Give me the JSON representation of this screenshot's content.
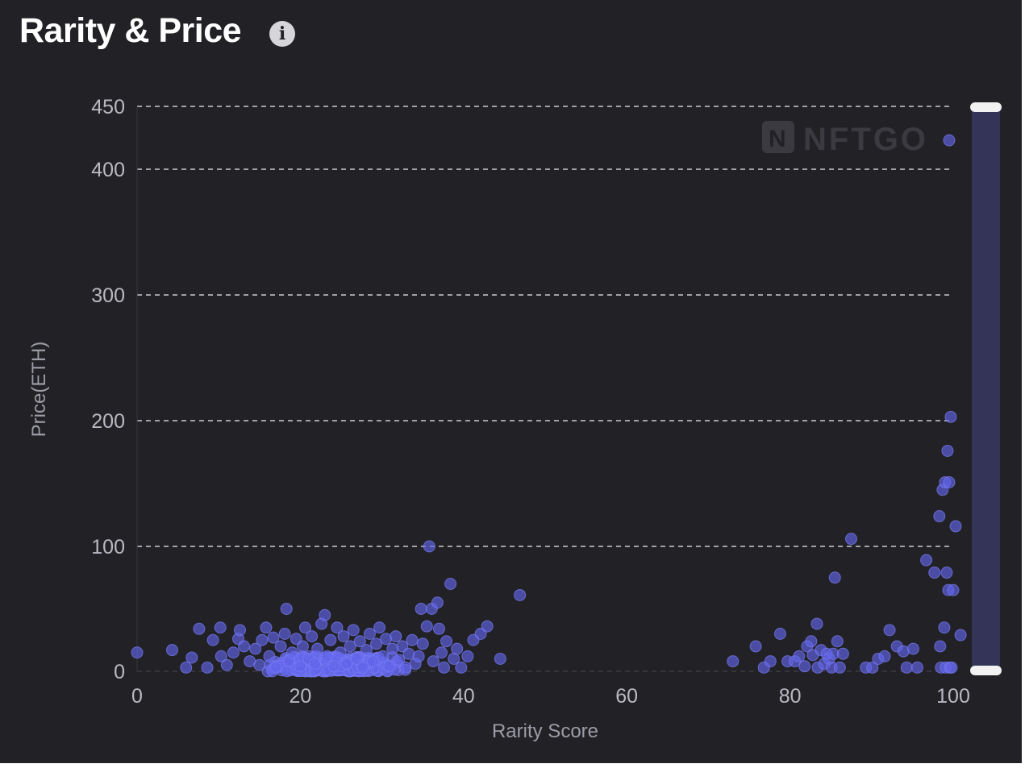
{
  "header": {
    "title": "Rarity & Price",
    "info_icon": "info-icon"
  },
  "watermark": {
    "text": "NFTGO"
  },
  "colors": {
    "background": "#222226",
    "point": "#6266ea",
    "slider_track": "#333458",
    "slider_handle": "#f2f2f2"
  },
  "chart_data": {
    "type": "scatter",
    "title": "Rarity & Price",
    "xlabel": "Rarity Score",
    "ylabel": "Price(ETH)",
    "xlim": [
      0,
      100
    ],
    "ylim": [
      0,
      450
    ],
    "x_ticks": [
      0,
      20,
      40,
      60,
      80,
      100
    ],
    "y_ticks": [
      0,
      100,
      200,
      300,
      400,
      450
    ],
    "grid": true,
    "zoom_slider": {
      "orientation": "vertical",
      "range": [
        0,
        450
      ]
    },
    "points": [
      [
        0,
        15
      ],
      [
        4.3,
        17
      ],
      [
        6,
        3
      ],
      [
        6.7,
        11
      ],
      [
        7.6,
        34
      ],
      [
        8.6,
        3
      ],
      [
        9.3,
        25
      ],
      [
        10.2,
        35
      ],
      [
        10.3,
        12
      ],
      [
        11,
        5
      ],
      [
        11.8,
        15
      ],
      [
        12.4,
        26
      ],
      [
        12.6,
        33
      ],
      [
        13.1,
        20
      ],
      [
        13.8,
        8
      ],
      [
        14.5,
        18
      ],
      [
        15,
        5
      ],
      [
        15.3,
        25
      ],
      [
        15.8,
        35
      ],
      [
        16.2,
        12
      ],
      [
        16.7,
        27
      ],
      [
        17,
        3
      ],
      [
        17.6,
        20
      ],
      [
        18.1,
        30
      ],
      [
        18.3,
        50
      ],
      [
        18.6,
        8
      ],
      [
        19,
        15
      ],
      [
        19.5,
        26
      ],
      [
        20,
        4
      ],
      [
        20.3,
        20
      ],
      [
        20.6,
        35
      ],
      [
        21,
        10
      ],
      [
        21.4,
        28
      ],
      [
        21.8,
        6
      ],
      [
        22.1,
        18
      ],
      [
        22.6,
        38
      ],
      [
        23,
        45
      ],
      [
        23.3,
        12
      ],
      [
        23.7,
        25
      ],
      [
        24.1,
        4
      ],
      [
        24.5,
        35
      ],
      [
        24.9,
        15
      ],
      [
        25.3,
        28
      ],
      [
        25.7,
        6
      ],
      [
        26.1,
        20
      ],
      [
        26.5,
        33
      ],
      [
        26.9,
        10
      ],
      [
        27.3,
        24
      ],
      [
        27.7,
        3
      ],
      [
        28.1,
        17
      ],
      [
        28.5,
        30
      ],
      [
        28.9,
        8
      ],
      [
        29.3,
        22
      ],
      [
        29.7,
        35
      ],
      [
        30.1,
        12
      ],
      [
        30.5,
        26
      ],
      [
        30.9,
        4
      ],
      [
        31.3,
        18
      ],
      [
        31.7,
        28
      ],
      [
        32.1,
        9
      ],
      [
        32.5,
        20
      ],
      [
        32.9,
        3
      ],
      [
        33.3,
        14
      ],
      [
        33.7,
        25
      ],
      [
        34.1,
        6
      ],
      [
        34.5,
        12
      ],
      [
        34.8,
        50
      ],
      [
        35,
        22
      ],
      [
        35.5,
        36
      ],
      [
        35.8,
        100
      ],
      [
        36.1,
        50
      ],
      [
        36.3,
        8
      ],
      [
        36.8,
        55
      ],
      [
        37,
        34
      ],
      [
        37.3,
        15
      ],
      [
        37.6,
        3
      ],
      [
        37.9,
        24
      ],
      [
        38.4,
        70
      ],
      [
        38.8,
        10
      ],
      [
        39.2,
        18
      ],
      [
        39.7,
        3
      ],
      [
        40.5,
        12
      ],
      [
        41.2,
        25
      ],
      [
        42.1,
        30
      ],
      [
        42.9,
        36
      ],
      [
        44.5,
        10
      ],
      [
        46.9,
        61
      ],
      [
        73,
        8
      ],
      [
        75.8,
        20
      ],
      [
        76.8,
        3
      ],
      [
        77.6,
        8
      ],
      [
        78.8,
        30
      ],
      [
        79.7,
        8
      ],
      [
        80.6,
        8
      ],
      [
        81.1,
        12
      ],
      [
        81.8,
        4
      ],
      [
        82.1,
        20
      ],
      [
        82.6,
        24
      ],
      [
        82.8,
        13
      ],
      [
        83.3,
        38
      ],
      [
        83.4,
        3
      ],
      [
        83.8,
        17
      ],
      [
        84.2,
        6
      ],
      [
        84.5,
        14
      ],
      [
        84.8,
        10
      ],
      [
        85.1,
        3
      ],
      [
        85.3,
        14
      ],
      [
        85.5,
        75
      ],
      [
        85.8,
        24
      ],
      [
        86.1,
        3
      ],
      [
        86.5,
        14
      ],
      [
        87.5,
        106
      ],
      [
        89.3,
        3
      ],
      [
        90.1,
        3
      ],
      [
        90.8,
        10
      ],
      [
        91.6,
        12
      ],
      [
        92.2,
        33
      ],
      [
        93.1,
        20
      ],
      [
        93.9,
        16
      ],
      [
        94.3,
        3
      ],
      [
        95.1,
        18
      ],
      [
        95.6,
        3
      ],
      [
        96.7,
        89
      ],
      [
        97.7,
        79
      ],
      [
        98.3,
        124
      ],
      [
        98.4,
        20
      ],
      [
        98.5,
        3
      ],
      [
        98.7,
        145
      ],
      [
        98.9,
        35
      ],
      [
        99,
        151
      ],
      [
        99.1,
        3
      ],
      [
        99.2,
        79
      ],
      [
        99.3,
        176
      ],
      [
        99.4,
        65
      ],
      [
        99.5,
        151
      ],
      [
        99.6,
        3
      ],
      [
        99.7,
        203
      ],
      [
        99.8,
        3
      ],
      [
        100,
        65
      ],
      [
        100.3,
        116
      ],
      [
        100.9,
        29
      ],
      [
        99.5,
        423
      ]
    ]
  },
  "dense_cluster": {
    "x_range": [
      14,
      35
    ],
    "y_range": [
      0,
      12
    ]
  }
}
